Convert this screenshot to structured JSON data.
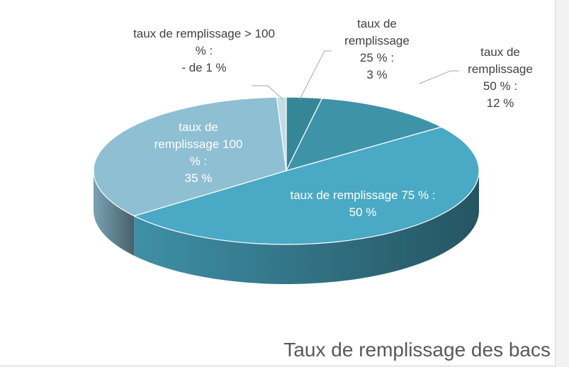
{
  "chart_data": {
    "type": "pie3d",
    "title": "Taux de remplissage des bacs",
    "categories": [
      "taux de remplissage 25 % :",
      "taux de remplissage 50 % :",
      "taux de remplissage 75 % :",
      "taux de remplissage 100 % :",
      "taux de remplissage > 100 % :"
    ],
    "values": [
      3,
      12,
      50,
      35,
      0.8
    ],
    "value_labels": [
      "3 %",
      "12 %",
      "50 %",
      "35 %",
      "- de 1 %"
    ],
    "colors": [
      "#358797",
      "#3e93a8",
      "#4aa9c4",
      "#8fbfd3",
      "#c3dbe5"
    ]
  }
}
